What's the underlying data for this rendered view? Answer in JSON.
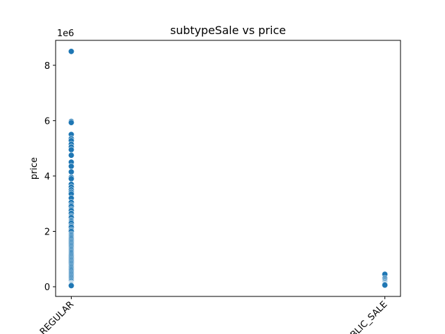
{
  "chart_data": {
    "type": "scatter",
    "title": "subtypeSale vs price",
    "xlabel": "",
    "ylabel": "price",
    "y_offset_label": "1e6",
    "y_multiplier": 1000000,
    "ylim": [
      -350000,
      8900000
    ],
    "categories": [
      "REGULAR",
      "PUBLIC_SALE"
    ],
    "y_ticks": [
      0,
      2000000,
      4000000,
      6000000,
      8000000
    ],
    "y_tick_labels": [
      "0",
      "2",
      "4",
      "6",
      "8"
    ],
    "grid": false,
    "point_color": "#1f77b4",
    "series": [
      {
        "category": "REGULAR",
        "values": [
          8500000,
          5970000,
          5930000,
          5500000,
          5350000,
          5280000,
          5150000,
          5050000,
          4950000,
          4750000,
          4500000,
          4350000,
          4150000,
          3950000,
          3900000,
          3700000,
          3600000,
          3500000,
          3420000,
          3350000,
          3200000,
          3050000,
          2950000,
          2900000,
          2800000,
          2750000,
          2650000,
          2550000,
          2500000,
          2400000,
          2350000,
          2300000,
          2200000,
          2150000,
          2050000,
          2000000,
          1900000,
          1850000,
          1800000,
          1750000,
          1700000,
          1650000,
          1600000,
          1550000,
          1500000,
          1450000,
          1400000,
          1350000,
          1300000,
          1250000,
          1200000,
          1150000,
          1100000,
          1050000,
          1000000,
          950000,
          900000,
          850000,
          800000,
          750000,
          700000,
          650000,
          600000,
          550000,
          500000,
          450000,
          400000,
          350000,
          300000,
          250000,
          200000,
          150000,
          120000,
          100000,
          80000,
          60000,
          40000
        ]
      },
      {
        "category": "PUBLIC_SALE",
        "values": [
          450000,
          300000,
          250000,
          200000,
          160000,
          130000,
          100000,
          80000,
          60000
        ]
      }
    ]
  }
}
